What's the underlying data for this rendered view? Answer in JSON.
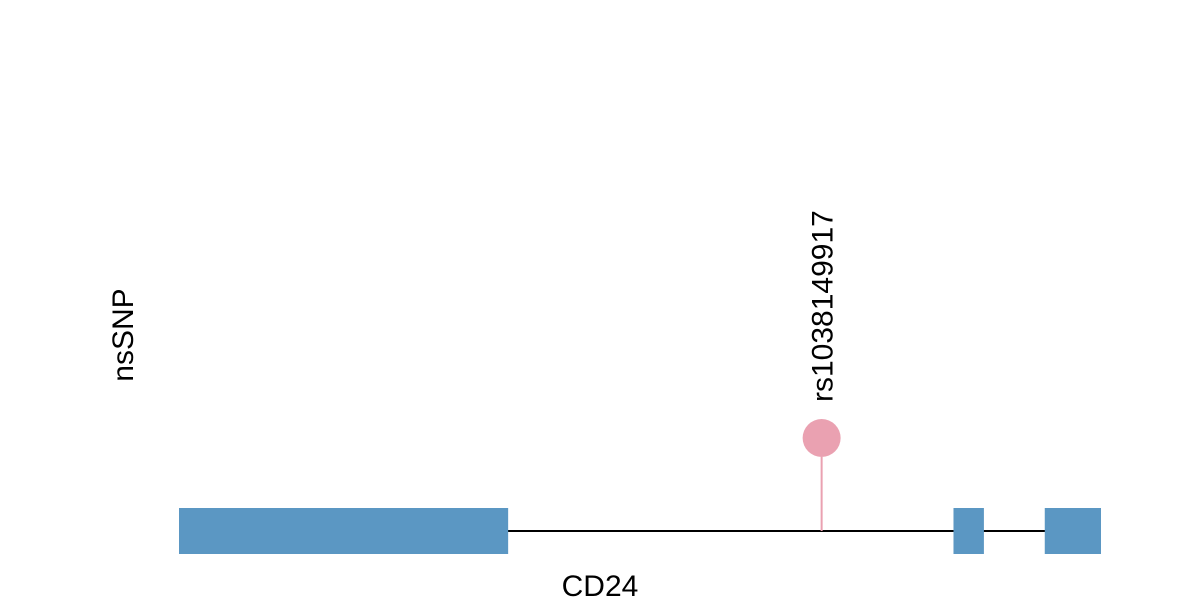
{
  "track_label": "nsSNP",
  "gene": {
    "name": "CD24",
    "color": "#5b97c3",
    "start": 0,
    "end": 1000,
    "exons": [
      {
        "start": 0,
        "end": 357
      },
      {
        "start": 840,
        "end": 873
      },
      {
        "start": 939,
        "end": 1000
      }
    ]
  },
  "snps": [
    {
      "id": "rs1038149917",
      "position": 697,
      "color": "#eaa1b1"
    }
  ]
}
